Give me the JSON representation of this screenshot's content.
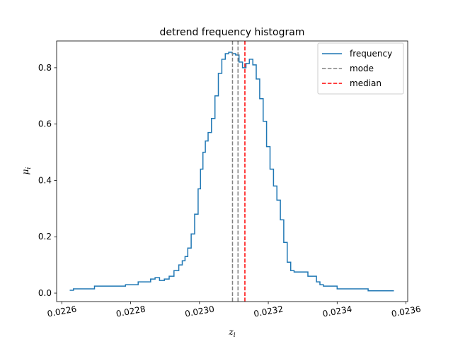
{
  "chart_data": {
    "type": "line",
    "title": "detrend frequency histogram",
    "xlabel": "z_i",
    "ylabel": "μ_i",
    "xlim": [
      0.022585,
      0.023605
    ],
    "ylim": [
      -0.03,
      0.895
    ],
    "xticks": [
      "0.0226",
      "0.0228",
      "0.0230",
      "0.0232",
      "0.0234",
      "0.0236"
    ],
    "xtick_values": [
      0.0226,
      0.0228,
      0.023,
      0.0232,
      0.0234,
      0.0236
    ],
    "yticks": [
      "0.0",
      "0.2",
      "0.4",
      "0.6",
      "0.8"
    ],
    "ytick_values": [
      0.0,
      0.2,
      0.4,
      0.6,
      0.8
    ],
    "grid": false,
    "legend_position": "top-right",
    "series": [
      {
        "name": "frequency",
        "style": "step",
        "color": "#1f77b4",
        "x": [
          0.022623,
          0.022634,
          0.022695,
          0.022785,
          0.022822,
          0.022858,
          0.022871,
          0.022884,
          0.022898,
          0.022912,
          0.022926,
          0.02294,
          0.02295,
          0.022958,
          0.022966,
          0.022976,
          0.022986,
          0.022996,
          0.023003,
          0.02301,
          0.023017,
          0.023025,
          0.023035,
          0.023045,
          0.023055,
          0.023065,
          0.023075,
          0.023085,
          0.023095,
          0.023105,
          0.023115,
          0.023125,
          0.023135,
          0.023145,
          0.023155,
          0.023165,
          0.023175,
          0.023185,
          0.023195,
          0.023205,
          0.023215,
          0.023225,
          0.023235,
          0.023245,
          0.023255,
          0.023265,
          0.023275,
          0.0233,
          0.023315,
          0.02334,
          0.02335,
          0.02336,
          0.0234,
          0.02349,
          0.023565
        ],
        "values": [
          0.01,
          0.015,
          0.025,
          0.03,
          0.04,
          0.05,
          0.055,
          0.045,
          0.05,
          0.06,
          0.08,
          0.1,
          0.115,
          0.13,
          0.16,
          0.21,
          0.28,
          0.37,
          0.44,
          0.5,
          0.54,
          0.57,
          0.62,
          0.7,
          0.78,
          0.83,
          0.85,
          0.855,
          0.85,
          0.845,
          0.82,
          0.8,
          0.815,
          0.83,
          0.81,
          0.76,
          0.69,
          0.61,
          0.52,
          0.44,
          0.38,
          0.33,
          0.26,
          0.18,
          0.11,
          0.08,
          0.075,
          0.075,
          0.06,
          0.04,
          0.03,
          0.025,
          0.015,
          0.008,
          0.008
        ]
      },
      {
        "name": "mode",
        "style": "vline",
        "color": "#808080",
        "dash": "dashed",
        "x": [
          0.023096,
          0.023112
        ]
      },
      {
        "name": "median",
        "style": "vline",
        "color": "#ff0000",
        "dash": "dashed",
        "x": [
          0.023132
        ]
      }
    ]
  }
}
